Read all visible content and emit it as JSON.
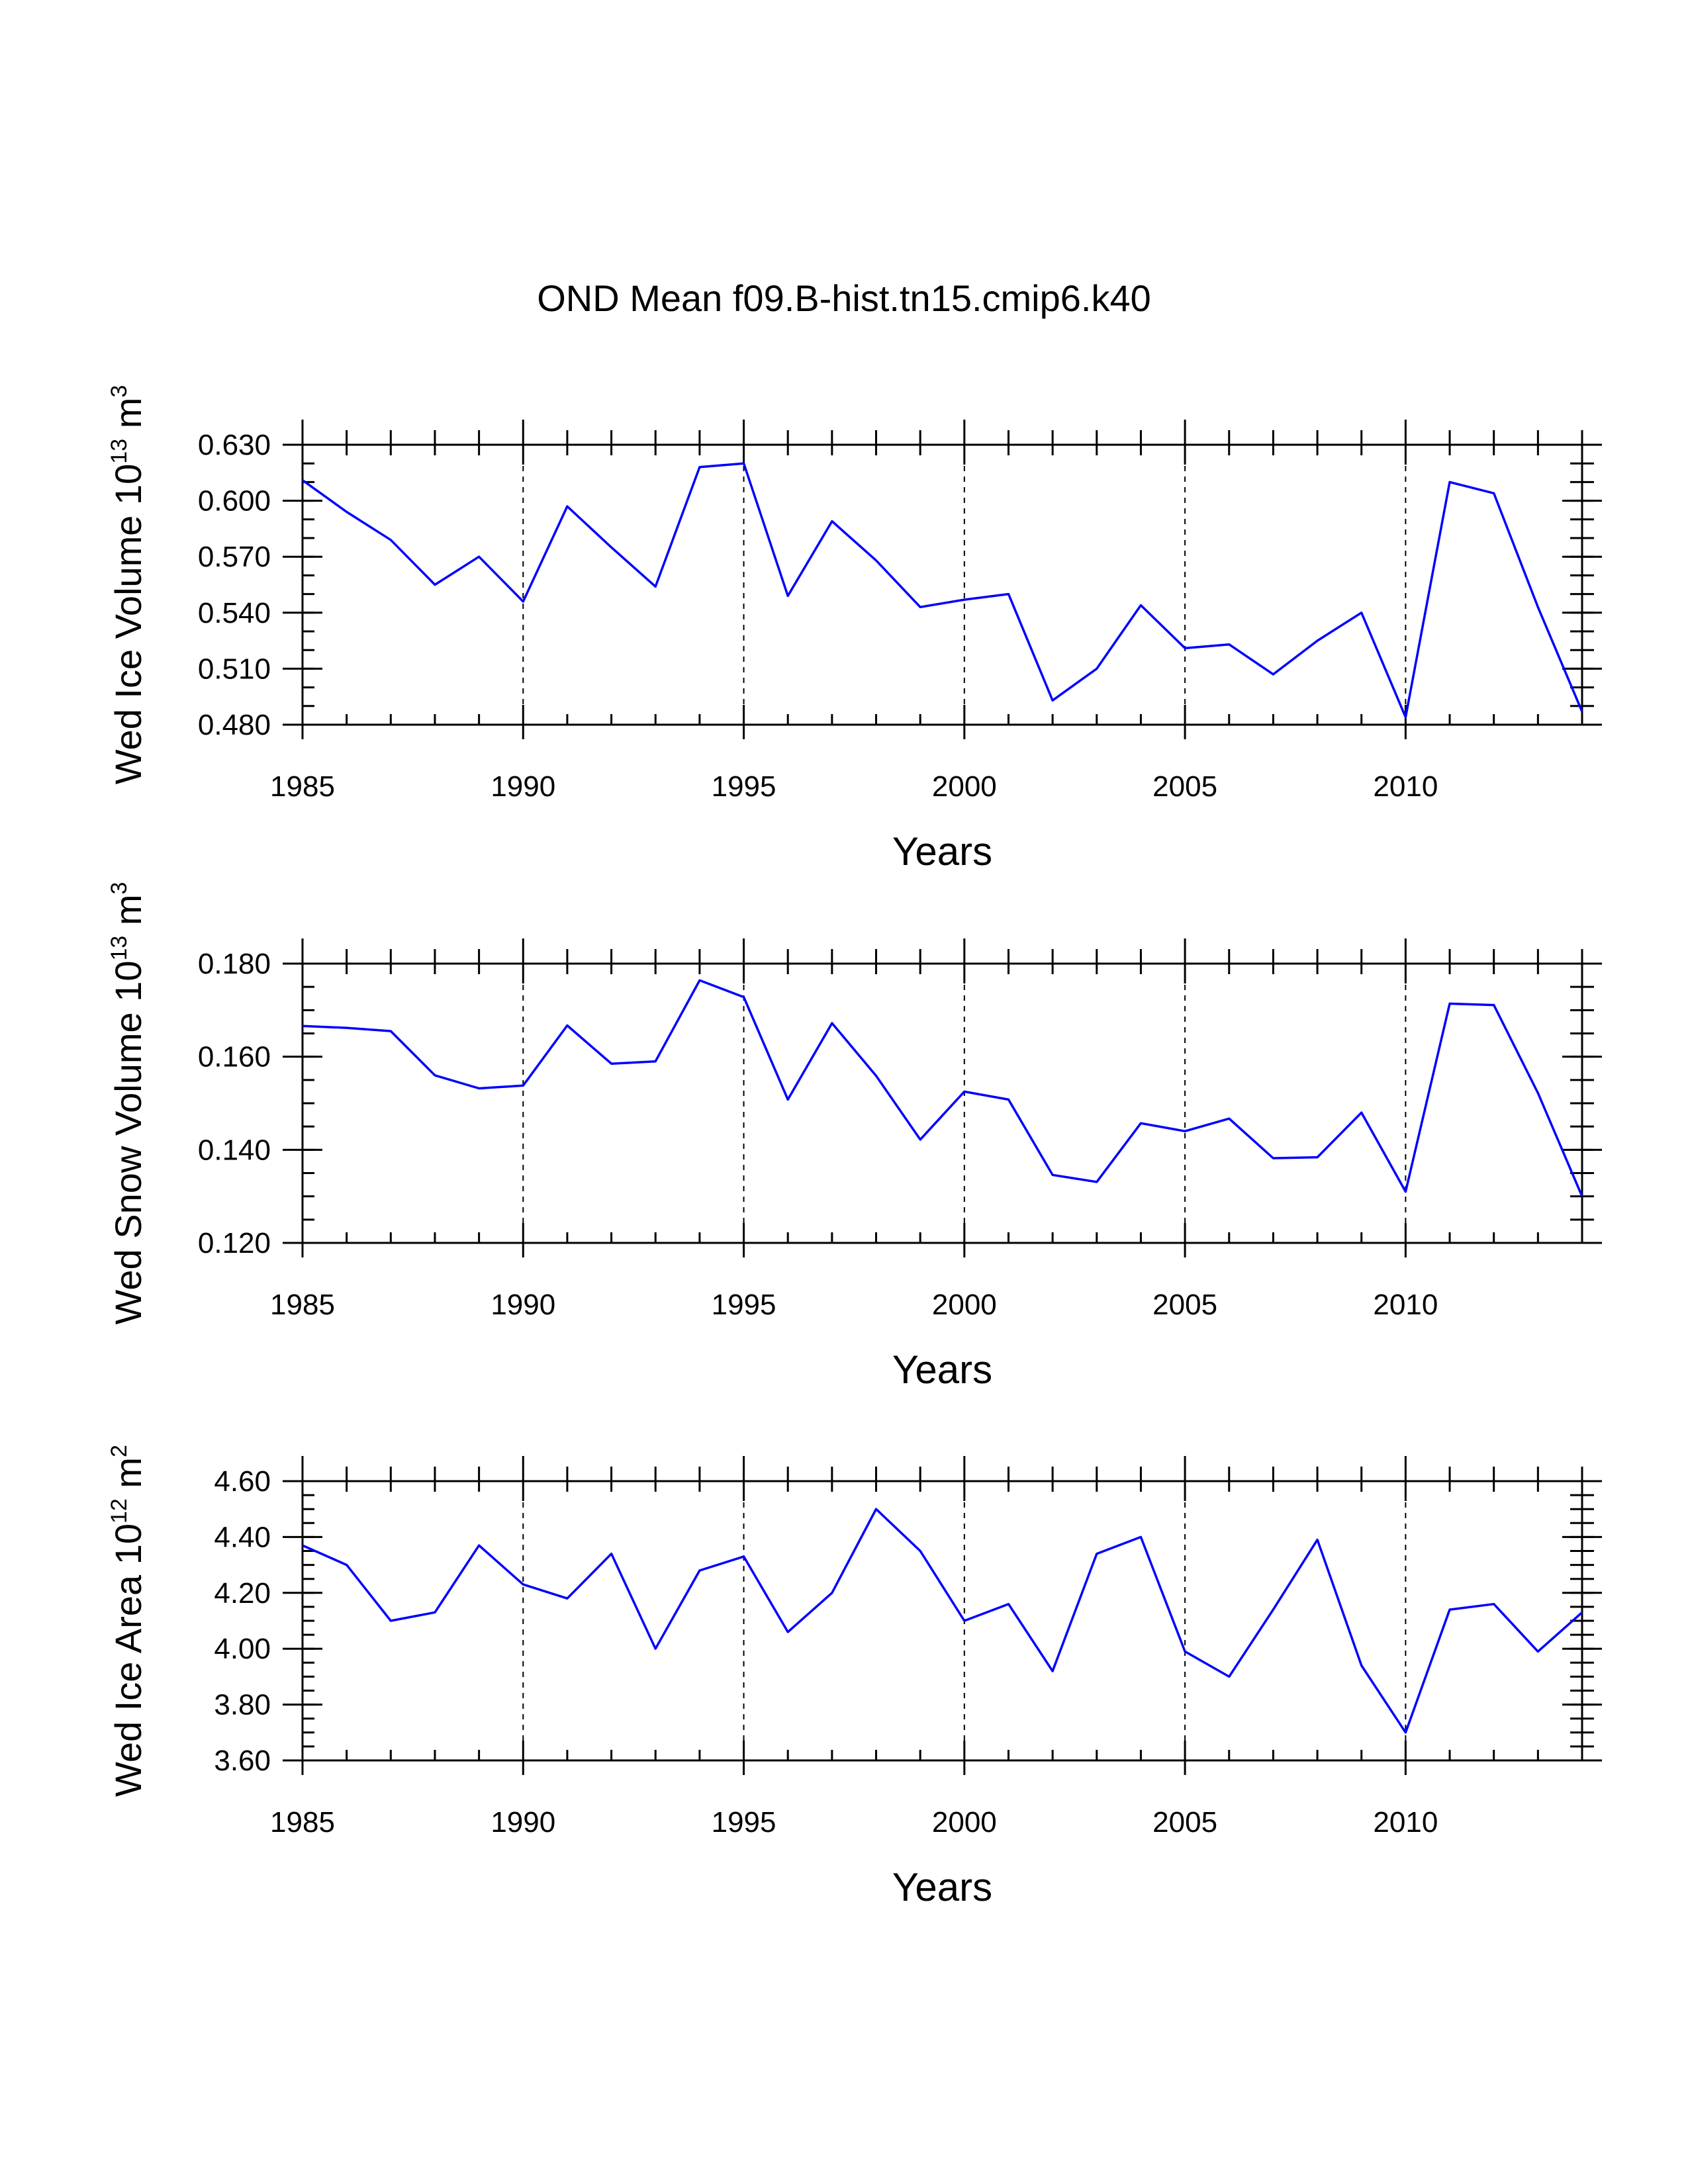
{
  "title": "OND Mean f09.B-hist.tn15.cmip6.k40",
  "colors": {
    "series": "#0000ff",
    "axes": "#000000",
    "background": "#ffffff"
  },
  "chart_data": [
    {
      "type": "line",
      "id": "ice-volume",
      "ylabel": {
        "text": "Wed Ice Volume 10",
        "exp": "13",
        "unit": " m",
        "unit_exp": "3"
      },
      "xlabel": "Years",
      "xlim": [
        1985,
        2014
      ],
      "ylim": [
        0.48,
        0.63
      ],
      "yticks": [
        "0.480",
        "0.510",
        "0.540",
        "0.570",
        "0.600",
        "0.630"
      ],
      "yminor": 0.01,
      "xticks": [
        "1985",
        "1990",
        "1995",
        "2000",
        "2005",
        "2010"
      ],
      "grid_x": [
        1990,
        1995,
        2000,
        2005,
        2010
      ],
      "x": [
        1985,
        1986,
        1987,
        1988,
        1989,
        1990,
        1991,
        1992,
        1993,
        1994,
        1995,
        1996,
        1997,
        1998,
        1999,
        2000,
        2001,
        2002,
        2003,
        2004,
        2005,
        2006,
        2007,
        2008,
        2009,
        2010,
        2011,
        2012,
        2013,
        2014
      ],
      "values": [
        0.611,
        0.594,
        0.579,
        0.555,
        0.57,
        0.546,
        0.597,
        0.575,
        0.554,
        0.618,
        0.62,
        0.549,
        0.589,
        0.568,
        0.543,
        0.547,
        0.55,
        0.493,
        0.51,
        0.544,
        0.521,
        0.523,
        0.507,
        0.525,
        0.54,
        0.484,
        0.61,
        0.604,
        0.543,
        0.487
      ]
    },
    {
      "type": "line",
      "id": "snow-volume",
      "ylabel": {
        "text": "Wed Snow Volume 10",
        "exp": "13",
        "unit": " m",
        "unit_exp": "3"
      },
      "xlabel": "Years",
      "xlim": [
        1985,
        2014
      ],
      "ylim": [
        0.12,
        0.18
      ],
      "yticks": [
        "0.120",
        "0.140",
        "0.160",
        "0.180"
      ],
      "yminor": 0.005,
      "xticks": [
        "1985",
        "1990",
        "1995",
        "2000",
        "2005",
        "2010"
      ],
      "grid_x": [
        1990,
        1995,
        2000,
        2005,
        2010
      ],
      "x": [
        1985,
        1986,
        1987,
        1988,
        1989,
        1990,
        1991,
        1992,
        1993,
        1994,
        1995,
        1996,
        1997,
        1998,
        1999,
        2000,
        2001,
        2002,
        2003,
        2004,
        2005,
        2006,
        2007,
        2008,
        2009,
        2010,
        2011,
        2012,
        2013,
        2014
      ],
      "values": [
        0.1666,
        0.1662,
        0.1655,
        0.156,
        0.1532,
        0.1538,
        0.1667,
        0.1585,
        0.159,
        0.1764,
        0.1728,
        0.1508,
        0.1672,
        0.1559,
        0.1422,
        0.1525,
        0.1508,
        0.1346,
        0.1331,
        0.1457,
        0.144,
        0.1467,
        0.1382,
        0.1384,
        0.148,
        0.131,
        0.1714,
        0.1711,
        0.1522,
        0.13
      ]
    },
    {
      "type": "line",
      "id": "ice-area",
      "ylabel": {
        "text": "Wed Ice Area 10",
        "exp": "12",
        "unit": " m",
        "unit_exp": "2"
      },
      "xlabel": "Years",
      "xlim": [
        1985,
        2014
      ],
      "ylim": [
        3.6,
        4.6
      ],
      "yticks": [
        "3.60",
        "3.80",
        "4.00",
        "4.20",
        "4.40",
        "4.60"
      ],
      "yminor": 0.05,
      "xticks": [
        "1985",
        "1990",
        "1995",
        "2000",
        "2005",
        "2010"
      ],
      "grid_x": [
        1990,
        1995,
        2000,
        2005,
        2010
      ],
      "x": [
        1985,
        1986,
        1987,
        1988,
        1989,
        1990,
        1991,
        1992,
        1993,
        1994,
        1995,
        1996,
        1997,
        1998,
        1999,
        2000,
        2001,
        2002,
        2003,
        2004,
        2005,
        2006,
        2007,
        2008,
        2009,
        2010,
        2011,
        2012,
        2013,
        2014
      ],
      "values": [
        4.37,
        4.3,
        4.1,
        4.13,
        4.37,
        4.23,
        4.18,
        4.34,
        4.0,
        4.28,
        4.33,
        4.06,
        4.2,
        4.5,
        4.35,
        4.1,
        4.16,
        3.92,
        4.34,
        4.4,
        3.99,
        3.9,
        4.14,
        4.39,
        3.94,
        3.7,
        4.14,
        4.16,
        3.99,
        4.13
      ]
    }
  ]
}
